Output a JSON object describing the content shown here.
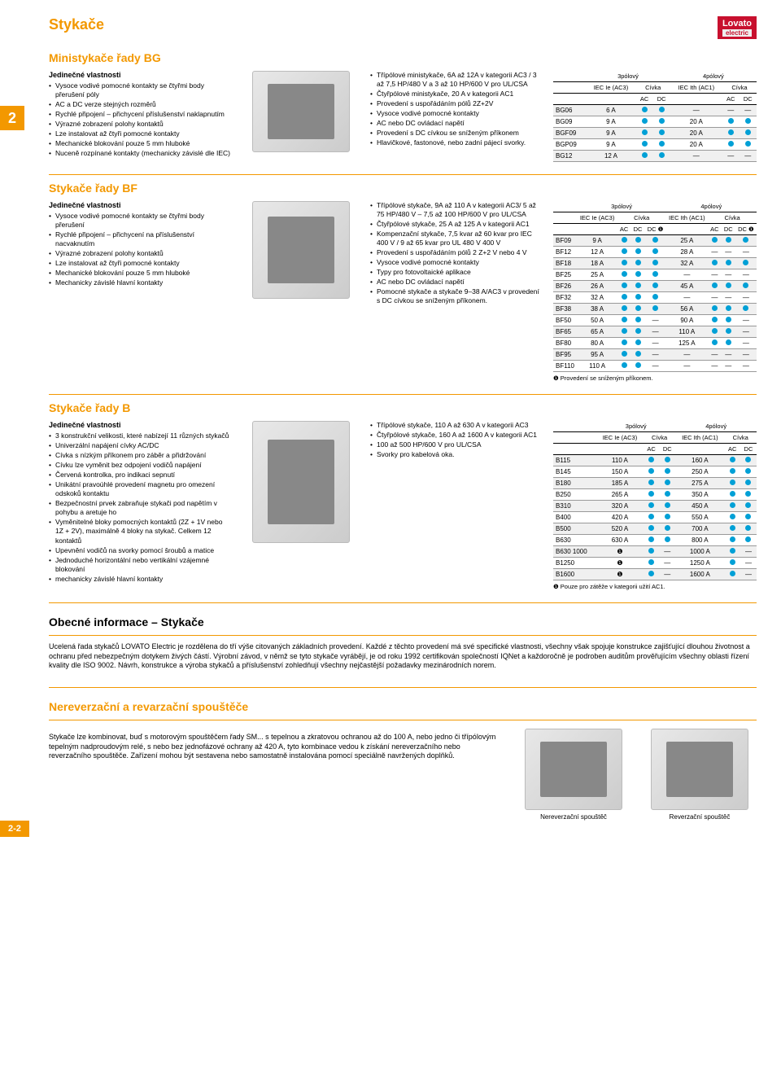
{
  "page": {
    "title": "Stykače",
    "side_tab": "2",
    "page_num": "2-2",
    "logo": "Lovato",
    "logo_sub": "electric"
  },
  "colors": {
    "orange": "#f39800",
    "red": "#c8102e",
    "dot": "#00a0d6",
    "row_alt": "#f0f0f0"
  },
  "bg": {
    "title": "Ministykače řady BG",
    "subhead": "Jedinečné vlastnosti",
    "features": [
      "Vysoce vodivé pomocné kontakty se čtyřmi body přerušení póly",
      "AC a DC verze stejných rozměrů",
      "Rychlé připojení – přichycení příslušenství naklapnutím",
      "Výrazné zobrazení polohy kontaktů",
      "Lze instalovat až čtyři pomocné kontakty",
      "Mechanické blokování pouze 5 mm hluboké",
      "Nuceně rozpínané kontakty (mechanicky závislé dle IEC)"
    ],
    "bullets2": [
      "Třípólové ministykače, 6A až 12A v kategorii AC3 / 3 až 7,5 HP/480 V a 3 až 10 HP/600 V pro UL/CSA",
      "Čtyřpólové ministykače, 20 A v kategorii AC1",
      "Provedení s uspořádáním pólů 2Z+2V",
      "Vysoce vodivé pomocné kontakty",
      "AC nebo DC ovládací napětí",
      "Provedení s DC cívkou se sníženým příkonem",
      "Hlavičkové, fastonové, nebo zadní pájecí svorky."
    ],
    "table": {
      "head3p": "3pólový",
      "head4p": "4pólový",
      "h_iec3": "IEC Ie (AC3)",
      "h_civka": "Cívka",
      "h_ac": "AC",
      "h_dc": "DC",
      "h_iec1": "IEC Ith (AC1)",
      "rows": [
        {
          "m": "BG06",
          "ie": "6 A",
          "ac3": "●",
          "dc3": "●",
          "ith": "—",
          "ac1": "—",
          "dc1": "—"
        },
        {
          "m": "BG09",
          "ie": "9 A",
          "ac3": "●",
          "dc3": "●",
          "ith": "20 A",
          "ac1": "●",
          "dc1": "●"
        },
        {
          "m": "BGF09",
          "ie": "9 A",
          "ac3": "●",
          "dc3": "●",
          "ith": "20 A",
          "ac1": "●",
          "dc1": "●"
        },
        {
          "m": "BGP09",
          "ie": "9 A",
          "ac3": "●",
          "dc3": "●",
          "ith": "20 A",
          "ac1": "●",
          "dc1": "●"
        },
        {
          "m": "BG12",
          "ie": "12 A",
          "ac3": "●",
          "dc3": "●",
          "ith": "—",
          "ac1": "—",
          "dc1": "—"
        }
      ]
    }
  },
  "bf": {
    "title": "Stykače řady BF",
    "subhead": "Jedinečné vlastnosti",
    "features": [
      "Vysoce vodivé pomocné kontakty se čtyřmi body přerušení",
      "Rychlé připojení – přichycení na příslušenství nacvaknutím",
      "Výrazné zobrazení polohy kontaktů",
      "Lze instalovat až čtyři pomocné kontakty",
      "Mechanické blokování pouze 5 mm hluboké",
      "Mechanicky závislé hlavní kontakty"
    ],
    "bullets2": [
      "Třípólové stykače, 9A až 110 A v kategorii AC3/ 5 až 75 HP/480 V – 7,5 až 100 HP/600 V pro UL/CSA",
      "Čtyřpólové stykače, 25 A až 125 A v kategorii AC1",
      "Kompenzační stykače, 7,5 kvar až 60 kvar pro IEC 400 V / 9 až 65 kvar pro UL 480 V 400 V",
      "Provedení s uspořádáním pólů 2 Z+2 V nebo 4 V",
      "Vysoce vodivé pomocné kontakty",
      "Typy pro fotovoltaické aplikace",
      "AC nebo DC ovládací napětí",
      "Pomocné stykače a stykače 9–38 A/AC3 v provedení s DC cívkou se sníženým příkonem."
    ],
    "note": "❶ Provedení se sníženým příkonem.",
    "table": {
      "head3p": "3pólový",
      "head4p": "4pólový",
      "h_iec3": "IEC Ie (AC3)",
      "h_civka": "Cívka",
      "h_ac": "AC",
      "h_dc": "DC",
      "h_dci": "DC ❶",
      "h_iec1": "IEC Ith (AC1)",
      "rows": [
        {
          "m": "BF09",
          "ie": "9 A",
          "a": "●",
          "d": "●",
          "di": "●",
          "ith": "25 A",
          "a1": "●",
          "d1": "●",
          "di1": "●"
        },
        {
          "m": "BF12",
          "ie": "12 A",
          "a": "●",
          "d": "●",
          "di": "●",
          "ith": "28 A",
          "a1": "—",
          "d1": "—",
          "di1": "—"
        },
        {
          "m": "BF18",
          "ie": "18 A",
          "a": "●",
          "d": "●",
          "di": "●",
          "ith": "32 A",
          "a1": "●",
          "d1": "●",
          "di1": "●"
        },
        {
          "m": "BF25",
          "ie": "25 A",
          "a": "●",
          "d": "●",
          "di": "●",
          "ith": "—",
          "a1": "—",
          "d1": "—",
          "di1": "—"
        },
        {
          "m": "BF26",
          "ie": "26 A",
          "a": "●",
          "d": "●",
          "di": "●",
          "ith": "45 A",
          "a1": "●",
          "d1": "●",
          "di1": "●"
        },
        {
          "m": "BF32",
          "ie": "32 A",
          "a": "●",
          "d": "●",
          "di": "●",
          "ith": "—",
          "a1": "—",
          "d1": "—",
          "di1": "—"
        },
        {
          "m": "BF38",
          "ie": "38 A",
          "a": "●",
          "d": "●",
          "di": "●",
          "ith": "56 A",
          "a1": "●",
          "d1": "●",
          "di1": "●"
        },
        {
          "m": "BF50",
          "ie": "50 A",
          "a": "●",
          "d": "●",
          "di": "—",
          "ith": "90 A",
          "a1": "●",
          "d1": "●",
          "di1": "—"
        },
        {
          "m": "BF65",
          "ie": "65 A",
          "a": "●",
          "d": "●",
          "di": "—",
          "ith": "110 A",
          "a1": "●",
          "d1": "●",
          "di1": "—"
        },
        {
          "m": "BF80",
          "ie": "80 A",
          "a": "●",
          "d": "●",
          "di": "—",
          "ith": "125 A",
          "a1": "●",
          "d1": "●",
          "di1": "—"
        },
        {
          "m": "BF95",
          "ie": "95 A",
          "a": "●",
          "d": "●",
          "di": "—",
          "ith": "—",
          "a1": "—",
          "d1": "—",
          "di1": "—"
        },
        {
          "m": "BF110",
          "ie": "110 A",
          "a": "●",
          "d": "●",
          "di": "—",
          "ith": "—",
          "a1": "—",
          "d1": "—",
          "di1": "—"
        }
      ]
    }
  },
  "b": {
    "title": "Stykače řady B",
    "subhead": "Jedinečné vlastnosti",
    "features": [
      "3 konstrukční velikosti, které nabízejí 11 různých stykačů",
      "Univerzální napájení cívky AC/DC",
      "Cívka s nízkým příkonem pro záběr a přidržování",
      "Cívku lze vyměnit bez odpojení vodičů napájení",
      "Červená kontrolka, pro indikaci sepnutí",
      "Unikátní pravoúhlé provedení magnetu pro omezení odskoků kontaktu",
      "Bezpečnostní prvek zabraňuje stykači pod napětím v pohybu a aretuje ho",
      "Vyměnitelné bloky pomocných kontaktů (2Z + 1V nebo 1Z + 2V), maximálně 4 bloky na stykač. Celkem 12 kontaktů",
      "Upevnění vodičů na svorky pomocí šroubů a matice",
      "Jednoduché horizontální nebo vertikální vzájemné blokování",
      "mechanicky závislé hlavní kontakty"
    ],
    "bullets2": [
      "Třípólové stykače, 110 A až 630 A v kategorii AC3",
      "Čtyřpólové stykače, 160 A až 1600 A v kategorii AC1",
      "100 až 500 HP/600 V pro UL/CSA",
      "Svorky pro kabelová oka."
    ],
    "note": "❶ Pouze pro zátěže v kategorii užití AC1.",
    "table": {
      "head3p": "3pólový",
      "head4p": "4pólový",
      "h_iec3": "IEC Ie (AC3)",
      "h_civka": "Cívka",
      "h_ac": "AC",
      "h_dc": "DC",
      "h_iec1": "IEC Ith (AC1)",
      "rows": [
        {
          "m": "B115",
          "ie": "110 A",
          "a": "●",
          "d": "●",
          "ith": "160 A",
          "a1": "●",
          "d1": "●"
        },
        {
          "m": "B145",
          "ie": "150 A",
          "a": "●",
          "d": "●",
          "ith": "250 A",
          "a1": "●",
          "d1": "●"
        },
        {
          "m": "B180",
          "ie": "185 A",
          "a": "●",
          "d": "●",
          "ith": "275 A",
          "a1": "●",
          "d1": "●"
        },
        {
          "m": "B250",
          "ie": "265 A",
          "a": "●",
          "d": "●",
          "ith": "350 A",
          "a1": "●",
          "d1": "●"
        },
        {
          "m": "B310",
          "ie": "320 A",
          "a": "●",
          "d": "●",
          "ith": "450 A",
          "a1": "●",
          "d1": "●"
        },
        {
          "m": "B400",
          "ie": "420 A",
          "a": "●",
          "d": "●",
          "ith": "550 A",
          "a1": "●",
          "d1": "●"
        },
        {
          "m": "B500",
          "ie": "520 A",
          "a": "●",
          "d": "●",
          "ith": "700 A",
          "a1": "●",
          "d1": "●"
        },
        {
          "m": "B630",
          "ie": "630 A",
          "a": "●",
          "d": "●",
          "ith": "800 A",
          "a1": "●",
          "d1": "●"
        },
        {
          "m": "B630 1000",
          "ie": "❶",
          "a": "●",
          "d": "—",
          "ith": "1000 A",
          "a1": "●",
          "d1": "—"
        },
        {
          "m": "B1250",
          "ie": "❶",
          "a": "●",
          "d": "—",
          "ith": "1250 A",
          "a1": "●",
          "d1": "—"
        },
        {
          "m": "B1600",
          "ie": "❶",
          "a": "●",
          "d": "—",
          "ith": "1600 A",
          "a1": "●",
          "d1": "—"
        }
      ]
    }
  },
  "info": {
    "title": "Obecné informace – Stykače",
    "text": "Ucelená řada stykačů LOVATO Electric je rozdělena do tří výše citovaných základních provedení. Každé z těchto provedení má své specifické vlastnosti, všechny však spojuje konstrukce zajišťující dlouhou životnost a ochranu před nebezpečným dotykem živých částí. Výrobní závod, v němž se tyto stykače vyrábějí, je od roku 1992 certifikován společností IQNet a každoročně je podroben auditům prověřujícím všechny oblasti řízení kvality dle ISO 9002. Návrh, konstrukce a výroba stykačů a příslušenství zohledňují všechny nejčastější požadavky mezinárodních norem."
  },
  "starters": {
    "title": "Nereverzační a revarzační spouštěče",
    "text": "Stykače lze kombinovat, buď s motorovým spouštěčem řady SM... s tepelnou a zkratovou ochranou až do 100 A, nebo jedno či třípólovým tepelným nadproudovým relé, s nebo bez jednofázové ochrany až 420 A, tyto kombinace vedou k získání nereverzačního nebo reverzačního spouštěče. Zařízení mohou být sestavena nebo samostatně instalována pomocí speciálně navržených doplňků.",
    "cap1": "Nereverzační spouštěč",
    "cap2": "Reverzační spouštěč"
  }
}
